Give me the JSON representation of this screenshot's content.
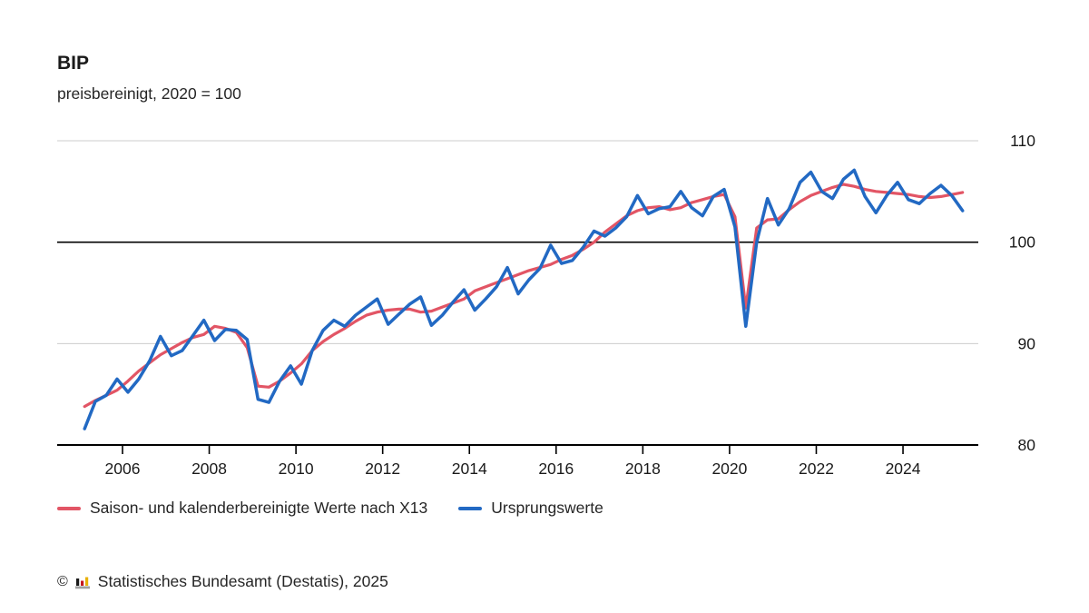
{
  "header": {
    "title": "BIP",
    "subtitle": "preisbereinigt, 2020 = 100"
  },
  "chart_data": {
    "type": "line",
    "title": "BIP",
    "subtitle": "preisbereinigt, 2020 = 100",
    "frequency": "quarterly",
    "x_start": "2005 Q1",
    "x_end": "2025 Q2",
    "x_tick_years": [
      2006,
      2008,
      2010,
      2012,
      2014,
      2016,
      2018,
      2020,
      2022,
      2024
    ],
    "ylim": [
      80,
      110
    ],
    "y_ticks": [
      80,
      90,
      100,
      110
    ],
    "light_gridlines": [
      90,
      110
    ],
    "baseline_value": 100,
    "grid_color": "#cccccc",
    "baseline_color": "#000000",
    "axis_color": "#000000",
    "series": [
      {
        "name": "Saison- und kalenderbereinigte Werte nach X13",
        "color": "#e25565",
        "stroke_width": 3.2,
        "values": [
          83.8,
          84.4,
          84.9,
          85.4,
          86.3,
          87.3,
          88.1,
          88.9,
          89.5,
          90.1,
          90.6,
          90.9,
          91.7,
          91.5,
          91.1,
          89.6,
          85.8,
          85.7,
          86.3,
          87.1,
          88.0,
          89.3,
          90.2,
          90.9,
          91.5,
          92.2,
          92.8,
          93.1,
          93.3,
          93.4,
          93.4,
          93.1,
          93.2,
          93.6,
          94.0,
          94.4,
          95.2,
          95.6,
          96.0,
          96.4,
          96.8,
          97.2,
          97.5,
          97.8,
          98.3,
          98.7,
          99.3,
          100.0,
          101.0,
          101.8,
          102.6,
          103.1,
          103.4,
          103.5,
          103.2,
          103.4,
          103.9,
          104.2,
          104.5,
          104.7,
          102.5,
          93.5,
          101.4,
          102.2,
          102.3,
          103.2,
          104.0,
          104.6,
          105.0,
          105.4,
          105.7,
          105.5,
          105.2,
          105.0,
          104.9,
          104.8,
          104.7,
          104.5,
          104.4,
          104.5,
          104.7,
          104.9
        ]
      },
      {
        "name": "Ursprungswerte",
        "color": "#2269c3",
        "stroke_width": 3.5,
        "values": [
          81.6,
          84.3,
          84.9,
          86.5,
          85.2,
          86.5,
          88.3,
          90.7,
          88.8,
          89.3,
          90.8,
          92.3,
          90.3,
          91.4,
          91.3,
          90.4,
          84.5,
          84.2,
          86.3,
          87.8,
          86.0,
          89.3,
          91.3,
          92.3,
          91.7,
          92.8,
          93.6,
          94.4,
          91.9,
          92.9,
          93.9,
          94.6,
          91.8,
          92.8,
          94.1,
          95.3,
          93.3,
          94.4,
          95.6,
          97.5,
          94.9,
          96.3,
          97.4,
          99.7,
          97.9,
          98.2,
          99.5,
          101.1,
          100.6,
          101.4,
          102.5,
          104.6,
          102.8,
          103.3,
          103.5,
          105.0,
          103.4,
          102.6,
          104.5,
          105.2,
          101.5,
          91.7,
          100.0,
          104.3,
          101.7,
          103.3,
          105.9,
          106.9,
          105.0,
          104.3,
          106.2,
          107.1,
          104.5,
          102.9,
          104.6,
          105.9,
          104.2,
          103.8,
          104.8,
          105.6,
          104.6,
          103.1
        ]
      }
    ]
  },
  "legend": {
    "items": [
      {
        "label": "Saison- und kalenderbereinigte Werte nach X13",
        "color": "#e25565"
      },
      {
        "label": "Ursprungswerte",
        "color": "#2269c3"
      }
    ]
  },
  "footer": {
    "copyright": "©",
    "source": "Statistisches Bundesamt (Destatis), 2025",
    "icon_colors": {
      "bar1": "#1a1a1a",
      "bar2": "#c4161c",
      "bar3": "#e8b007",
      "base": "#a0a0a0"
    }
  }
}
